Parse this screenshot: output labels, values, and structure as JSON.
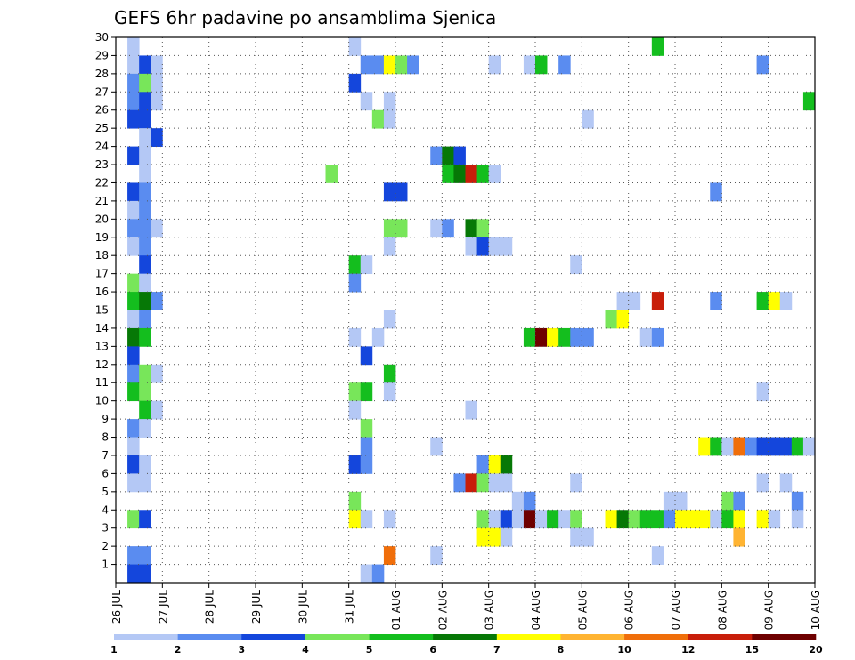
{
  "chart_data": {
    "type": "heatmap",
    "title": "GEFS 6hr padavine po ansamblima Sjenica",
    "ylim": [
      0,
      30
    ],
    "y_ticks": [
      "1",
      "2",
      "3",
      "4",
      "5",
      "6",
      "7",
      "8",
      "9",
      "10",
      "11",
      "12",
      "13",
      "14",
      "15",
      "16",
      "17",
      "18",
      "19",
      "20",
      "21",
      "22",
      "23",
      "24",
      "25",
      "26",
      "27",
      "28",
      "29",
      "30"
    ],
    "x_ticks": [
      "26 JUL",
      "27 JUL",
      "28 JUL",
      "29 JUL",
      "30 JUL",
      "31 JUL",
      "01 AUG",
      "02 AUG",
      "03 AUG",
      "04 AUG",
      "05 AUG",
      "06 AUG",
      "07 AUG",
      "08 AUG",
      "09 AUG",
      "10 AUG"
    ],
    "grid": true,
    "legend": "bottom",
    "color_levels": [
      "1",
      "2",
      "3",
      "4",
      "5",
      "6",
      "7",
      "8",
      "10",
      "12",
      "15",
      "20"
    ],
    "colors": [
      "#b4c8f5",
      "#5a8cf0",
      "#1446dc",
      "#78e65a",
      "#14be1e",
      "#067806",
      "#ffff00",
      "#ffb432",
      "#f06e0a",
      "#c81e0a",
      "#6e0000"
    ],
    "cells": [
      [
        0.25,
        30,
        0
      ],
      [
        0.25,
        29,
        0
      ],
      [
        0.5,
        29,
        2
      ],
      [
        0.75,
        29,
        0
      ],
      [
        5.0,
        30,
        0
      ],
      [
        5.25,
        29,
        1
      ],
      [
        5.5,
        29,
        1
      ],
      [
        5.75,
        29,
        6
      ],
      [
        6.0,
        29,
        3
      ],
      [
        6.25,
        29,
        1
      ],
      [
        8.0,
        29,
        0
      ],
      [
        8.75,
        29,
        0
      ],
      [
        9.0,
        29,
        4
      ],
      [
        9.5,
        29,
        1
      ],
      [
        13.75,
        29,
        1
      ],
      [
        11.5,
        30,
        4
      ],
      [
        0.25,
        28,
        1
      ],
      [
        0.5,
        28,
        3
      ],
      [
        0.75,
        28,
        0
      ],
      [
        5.0,
        28,
        2
      ],
      [
        0.25,
        27,
        1
      ],
      [
        0.5,
        27,
        2
      ],
      [
        0.75,
        27,
        0
      ],
      [
        5.25,
        27,
        0
      ],
      [
        5.75,
        27,
        0
      ],
      [
        14.75,
        27,
        4
      ],
      [
        0.25,
        26,
        2
      ],
      [
        0.5,
        26,
        2
      ],
      [
        5.5,
        26,
        3
      ],
      [
        5.75,
        26,
        0
      ],
      [
        10.0,
        26,
        0
      ],
      [
        0.5,
        25,
        0
      ],
      [
        0.75,
        25,
        2
      ],
      [
        0.25,
        24,
        2
      ],
      [
        0.5,
        24,
        0
      ],
      [
        6.75,
        24,
        1
      ],
      [
        7.0,
        24,
        5
      ],
      [
        7.25,
        24,
        2
      ],
      [
        0.5,
        23,
        0
      ],
      [
        4.5,
        23,
        3
      ],
      [
        7.0,
        23,
        4
      ],
      [
        7.25,
        23,
        5
      ],
      [
        7.5,
        23,
        9
      ],
      [
        7.75,
        23,
        4
      ],
      [
        8.0,
        23,
        0
      ],
      [
        0.25,
        22,
        2
      ],
      [
        0.5,
        22,
        1
      ],
      [
        5.75,
        22,
        2
      ],
      [
        6.0,
        22,
        2
      ],
      [
        12.75,
        22,
        1
      ],
      [
        0.25,
        21,
        0
      ],
      [
        0.5,
        21,
        1
      ],
      [
        0.25,
        20,
        1
      ],
      [
        0.5,
        20,
        1
      ],
      [
        0.75,
        20,
        0
      ],
      [
        5.75,
        20,
        3
      ],
      [
        6.0,
        20,
        3
      ],
      [
        6.75,
        20,
        0
      ],
      [
        7.0,
        20,
        1
      ],
      [
        7.5,
        20,
        5
      ],
      [
        7.75,
        20,
        3
      ],
      [
        0.25,
        19,
        0
      ],
      [
        0.5,
        19,
        1
      ],
      [
        5.75,
        19,
        0
      ],
      [
        7.5,
        19,
        0
      ],
      [
        7.75,
        19,
        2
      ],
      [
        8.0,
        19,
        0
      ],
      [
        8.25,
        19,
        0
      ],
      [
        0.5,
        18,
        2
      ],
      [
        5.0,
        18,
        4
      ],
      [
        5.25,
        18,
        0
      ],
      [
        9.75,
        18,
        0
      ],
      [
        0.25,
        17,
        3
      ],
      [
        0.5,
        17,
        0
      ],
      [
        5.0,
        17,
        1
      ],
      [
        0.25,
        16,
        4
      ],
      [
        0.5,
        16,
        5
      ],
      [
        0.75,
        16,
        1
      ],
      [
        10.75,
        16,
        0
      ],
      [
        11.0,
        16,
        0
      ],
      [
        11.5,
        16,
        9
      ],
      [
        12.75,
        16,
        1
      ],
      [
        13.75,
        16,
        4
      ],
      [
        14.0,
        16,
        6
      ],
      [
        14.25,
        16,
        0
      ],
      [
        0.25,
        15,
        0
      ],
      [
        0.5,
        15,
        1
      ],
      [
        5.75,
        15,
        0
      ],
      [
        10.5,
        15,
        3
      ],
      [
        10.75,
        15,
        6
      ],
      [
        0.25,
        14,
        5
      ],
      [
        0.5,
        14,
        4
      ],
      [
        5.0,
        14,
        0
      ],
      [
        5.5,
        14,
        0
      ],
      [
        8.75,
        14,
        4
      ],
      [
        9.0,
        14,
        10
      ],
      [
        9.25,
        14,
        6
      ],
      [
        9.5,
        14,
        4
      ],
      [
        9.75,
        14,
        1
      ],
      [
        10.0,
        14,
        1
      ],
      [
        11.25,
        14,
        0
      ],
      [
        11.5,
        14,
        1
      ],
      [
        0.25,
        13,
        2
      ],
      [
        5.25,
        13,
        2
      ],
      [
        0.25,
        12,
        1
      ],
      [
        0.5,
        12,
        3
      ],
      [
        0.75,
        12,
        0
      ],
      [
        5.75,
        12,
        4
      ],
      [
        0.25,
        11,
        4
      ],
      [
        0.5,
        11,
        3
      ],
      [
        5.0,
        11,
        3
      ],
      [
        5.25,
        11,
        4
      ],
      [
        5.75,
        11,
        0
      ],
      [
        13.75,
        11,
        0
      ],
      [
        0.5,
        10,
        4
      ],
      [
        0.75,
        10,
        0
      ],
      [
        5.0,
        10,
        0
      ],
      [
        7.5,
        10,
        0
      ],
      [
        0.25,
        9,
        1
      ],
      [
        0.5,
        9,
        0
      ],
      [
        5.25,
        9,
        3
      ],
      [
        0.25,
        8,
        0
      ],
      [
        5.25,
        8,
        1
      ],
      [
        6.75,
        8,
        0
      ],
      [
        12.5,
        8,
        6
      ],
      [
        12.75,
        8,
        4
      ],
      [
        13.0,
        8,
        0
      ],
      [
        13.25,
        8,
        8
      ],
      [
        13.5,
        8,
        1
      ],
      [
        13.75,
        8,
        2
      ],
      [
        14.0,
        8,
        2
      ],
      [
        14.25,
        8,
        2
      ],
      [
        14.5,
        8,
        4
      ],
      [
        14.75,
        8,
        0
      ],
      [
        0.25,
        7,
        2
      ],
      [
        0.5,
        7,
        0
      ],
      [
        5.0,
        7,
        2
      ],
      [
        5.25,
        7,
        1
      ],
      [
        7.75,
        7,
        1
      ],
      [
        8.0,
        7,
        6
      ],
      [
        8.25,
        7,
        5
      ],
      [
        0.25,
        6,
        0
      ],
      [
        0.5,
        6,
        0
      ],
      [
        7.25,
        6,
        1
      ],
      [
        7.5,
        6,
        9
      ],
      [
        7.75,
        6,
        3
      ],
      [
        8.0,
        6,
        0
      ],
      [
        8.25,
        6,
        0
      ],
      [
        9.75,
        6,
        0
      ],
      [
        13.75,
        6,
        0
      ],
      [
        14.25,
        6,
        0
      ],
      [
        5.0,
        5,
        3
      ],
      [
        8.5,
        5,
        0
      ],
      [
        8.75,
        5,
        1
      ],
      [
        11.75,
        5,
        0
      ],
      [
        12.0,
        5,
        0
      ],
      [
        13.0,
        5,
        3
      ],
      [
        13.25,
        5,
        1
      ],
      [
        14.5,
        5,
        1
      ],
      [
        0.25,
        4,
        3
      ],
      [
        0.5,
        4,
        2
      ],
      [
        5.0,
        4,
        6
      ],
      [
        5.25,
        4,
        0
      ],
      [
        5.75,
        4,
        0
      ],
      [
        7.75,
        4,
        3
      ],
      [
        8.0,
        4,
        0
      ],
      [
        8.25,
        4,
        2
      ],
      [
        8.5,
        4,
        0
      ],
      [
        8.75,
        4,
        10
      ],
      [
        9.0,
        4,
        0
      ],
      [
        9.25,
        4,
        4
      ],
      [
        9.5,
        4,
        0
      ],
      [
        9.75,
        4,
        3
      ],
      [
        10.5,
        4,
        6
      ],
      [
        10.75,
        4,
        5
      ],
      [
        11.0,
        4,
        3
      ],
      [
        11.25,
        4,
        4
      ],
      [
        11.5,
        4,
        4
      ],
      [
        11.75,
        4,
        1
      ],
      [
        12.0,
        4,
        6
      ],
      [
        12.25,
        4,
        6
      ],
      [
        12.5,
        4,
        6
      ],
      [
        12.75,
        4,
        0
      ],
      [
        13.0,
        4,
        4
      ],
      [
        13.25,
        4,
        6
      ],
      [
        13.75,
        4,
        6
      ],
      [
        14.0,
        4,
        0
      ],
      [
        14.5,
        4,
        0
      ],
      [
        7.75,
        3,
        6
      ],
      [
        8.0,
        3,
        6
      ],
      [
        8.25,
        3,
        0
      ],
      [
        9.75,
        3,
        0
      ],
      [
        10.0,
        3,
        0
      ],
      [
        13.25,
        3,
        7
      ],
      [
        0.25,
        2,
        1
      ],
      [
        0.5,
        2,
        1
      ],
      [
        5.75,
        2,
        8
      ],
      [
        6.75,
        2,
        0
      ],
      [
        11.5,
        2,
        0
      ],
      [
        0.25,
        1,
        2
      ],
      [
        0.5,
        1,
        2
      ],
      [
        5.25,
        1,
        0
      ],
      [
        5.5,
        1,
        1
      ]
    ]
  }
}
